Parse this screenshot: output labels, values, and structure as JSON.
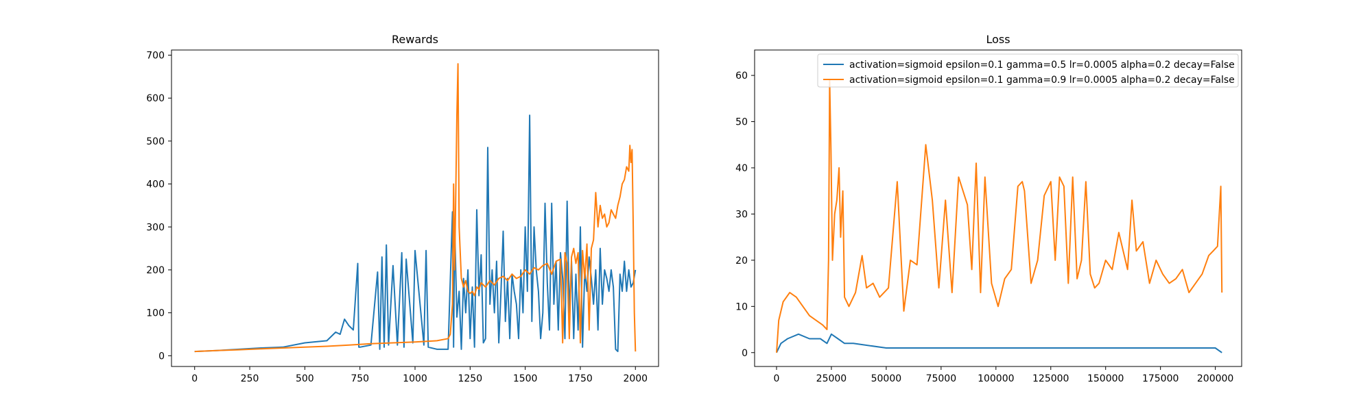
{
  "chart_data": [
    {
      "type": "line",
      "title": "Rewards",
      "xlabel": "",
      "ylabel": "",
      "xlim": [
        -105,
        2105
      ],
      "ylim": [
        -25,
        712
      ],
      "xticks": [
        0,
        250,
        500,
        750,
        1000,
        1250,
        1500,
        1750,
        2000
      ],
      "xtick_labels": [
        "0",
        "250",
        "500",
        "750",
        "1000",
        "1250",
        "1500",
        "1750",
        "2000"
      ],
      "yticks": [
        0,
        100,
        200,
        300,
        400,
        500,
        600,
        700
      ],
      "ytick_labels": [
        "0",
        "100",
        "200",
        "300",
        "400",
        "500",
        "600",
        "700"
      ],
      "grid": false,
      "legend": "none",
      "series": [
        {
          "color": "#1f77b4",
          "x": [
            0,
            100,
            200,
            300,
            400,
            500,
            600,
            640,
            660,
            680,
            700,
            720,
            740,
            745,
            750,
            800,
            830,
            840,
            850,
            860,
            870,
            880,
            900,
            920,
            940,
            950,
            960,
            990,
            1000,
            1040,
            1050,
            1060,
            1100,
            1150,
            1170,
            1175,
            1180,
            1190,
            1200,
            1210,
            1220,
            1230,
            1240,
            1250,
            1260,
            1270,
            1280,
            1290,
            1300,
            1310,
            1320,
            1330,
            1340,
            1350,
            1360,
            1370,
            1380,
            1390,
            1400,
            1410,
            1420,
            1430,
            1440,
            1450,
            1460,
            1470,
            1480,
            1490,
            1500,
            1510,
            1520,
            1530,
            1540,
            1550,
            1560,
            1570,
            1580,
            1590,
            1600,
            1610,
            1620,
            1630,
            1640,
            1650,
            1660,
            1670,
            1680,
            1690,
            1700,
            1710,
            1720,
            1730,
            1740,
            1750,
            1760,
            1770,
            1780,
            1790,
            1800,
            1810,
            1820,
            1830,
            1840,
            1850,
            1860,
            1870,
            1880,
            1890,
            1900,
            1910,
            1920,
            1930,
            1940,
            1950,
            1960,
            1970,
            1980,
            1990,
            2000
          ],
          "y": [
            10,
            12,
            15,
            18,
            20,
            30,
            35,
            55,
            50,
            85,
            70,
            60,
            215,
            20,
            20,
            25,
            195,
            15,
            230,
            20,
            258,
            25,
            210,
            25,
            240,
            20,
            225,
            30,
            245,
            25,
            245,
            20,
            15,
            15,
            335,
            20,
            300,
            90,
            150,
            15,
            180,
            100,
            200,
            40,
            160,
            20,
            340,
            140,
            235,
            30,
            40,
            485,
            120,
            200,
            100,
            220,
            30,
            150,
            290,
            80,
            180,
            40,
            190,
            150,
            120,
            40,
            200,
            100,
            300,
            150,
            560,
            80,
            300,
            200,
            150,
            40,
            100,
            355,
            170,
            60,
            355,
            120,
            220,
            60,
            240,
            180,
            40,
            360,
            100,
            220,
            40,
            190,
            60,
            300,
            20,
            200,
            150,
            230,
            180,
            120,
            200,
            60,
            250,
            120,
            200,
            180,
            150,
            200,
            160,
            15,
            10,
            190,
            150,
            220,
            150,
            200,
            160,
            170,
            200
          ]
        },
        {
          "color": "#ff7f0e",
          "x": [
            0,
            100,
            200,
            300,
            400,
            500,
            600,
            700,
            800,
            900,
            1000,
            1100,
            1150,
            1160,
            1170,
            1175,
            1180,
            1190,
            1195,
            1200,
            1210,
            1220,
            1230,
            1240,
            1250,
            1260,
            1270,
            1280,
            1290,
            1300,
            1320,
            1340,
            1350,
            1360,
            1380,
            1400,
            1420,
            1440,
            1460,
            1480,
            1500,
            1520,
            1540,
            1560,
            1580,
            1600,
            1620,
            1640,
            1660,
            1670,
            1680,
            1690,
            1700,
            1710,
            1720,
            1730,
            1740,
            1750,
            1760,
            1770,
            1780,
            1790,
            1800,
            1810,
            1820,
            1830,
            1840,
            1850,
            1860,
            1870,
            1880,
            1890,
            1900,
            1910,
            1920,
            1930,
            1940,
            1950,
            1960,
            1970,
            1975,
            1980,
            1985,
            1990,
            1995,
            2000
          ],
          "y": [
            10,
            12,
            14,
            16,
            18,
            20,
            22,
            25,
            28,
            30,
            32,
            35,
            40,
            50,
            120,
            400,
            200,
            560,
            680,
            300,
            180,
            160,
            175,
            150,
            145,
            150,
            140,
            160,
            155,
            170,
            160,
            175,
            170,
            165,
            180,
            185,
            175,
            190,
            180,
            185,
            200,
            190,
            205,
            200,
            210,
            215,
            190,
            220,
            225,
            30,
            240,
            215,
            40,
            230,
            250,
            215,
            240,
            30,
            245,
            180,
            260,
            60,
            250,
            270,
            380,
            300,
            350,
            320,
            330,
            300,
            310,
            340,
            330,
            320,
            350,
            370,
            400,
            410,
            440,
            430,
            490,
            450,
            480,
            300,
            100,
            10
          ]
        }
      ]
    },
    {
      "type": "line",
      "title": "Loss",
      "xlabel": "",
      "ylabel": "",
      "xlim": [
        -10000,
        212000
      ],
      "ylim": [
        -3,
        65.5
      ],
      "xticks": [
        0,
        25000,
        50000,
        75000,
        100000,
        125000,
        150000,
        175000,
        200000
      ],
      "xtick_labels": [
        "0",
        "25000",
        "50000",
        "75000",
        "100000",
        "125000",
        "150000",
        "175000",
        "200000"
      ],
      "yticks": [
        0,
        10,
        20,
        30,
        40,
        50,
        60
      ],
      "ytick_labels": [
        "0",
        "10",
        "20",
        "30",
        "40",
        "50",
        "60"
      ],
      "grid": false,
      "legend": "top-right",
      "series": [
        {
          "name": "activation=sigmoid epsilon=0.1 gamma=0.5 lr=0.0005 alpha=0.2 decay=False",
          "color": "#1f77b4",
          "x": [
            0,
            2000,
            5000,
            10000,
            15000,
            20000,
            23000,
            25000,
            28000,
            31000,
            35000,
            50000,
            75000,
            100000,
            125000,
            150000,
            175000,
            200000,
            203000
          ],
          "y": [
            0,
            2,
            3,
            4,
            3,
            3,
            2,
            4,
            3,
            2,
            2,
            1,
            1,
            1,
            1,
            1,
            1,
            1,
            0
          ]
        },
        {
          "name": "activation=sigmoid epsilon=0.1 gamma=0.9 lr=0.0005 alpha=0.2 decay=False",
          "color": "#ff7f0e",
          "x": [
            0,
            1000,
            3000,
            6000,
            9000,
            12000,
            15000,
            18000,
            21000,
            23000,
            23700,
            24200,
            24800,
            25500,
            26500,
            27500,
            28500,
            29200,
            30200,
            31000,
            32000,
            33000,
            36000,
            39000,
            41000,
            44000,
            47000,
            51000,
            55000,
            58000,
            61000,
            64000,
            68000,
            71000,
            74000,
            77000,
            80000,
            83000,
            87000,
            89000,
            91000,
            93000,
            95000,
            98000,
            101000,
            104000,
            107000,
            110000,
            112000,
            113000,
            116000,
            119000,
            122000,
            125000,
            127000,
            129000,
            131000,
            133000,
            135000,
            137000,
            139000,
            141000,
            143000,
            145000,
            147000,
            150000,
            153000,
            156000,
            158000,
            160000,
            162000,
            164000,
            167000,
            170000,
            173000,
            176000,
            179000,
            182000,
            185000,
            188000,
            191000,
            194000,
            197000,
            199000,
            201000,
            202500,
            203000
          ],
          "y": [
            0,
            7,
            11,
            13,
            12,
            10,
            8,
            7,
            6,
            5,
            20,
            59,
            44,
            20,
            30,
            33,
            40,
            25,
            35,
            12,
            11,
            10,
            13,
            21,
            14,
            15,
            12,
            14,
            37,
            9,
            20,
            19,
            45,
            33,
            14,
            33,
            13,
            38,
            32,
            18,
            41,
            13,
            38,
            15,
            10,
            16,
            18,
            36,
            37,
            35,
            15,
            20,
            34,
            37,
            20,
            38,
            36,
            15,
            38,
            16,
            20,
            37,
            17,
            14,
            15,
            20,
            18,
            26,
            22,
            18,
            33,
            22,
            24,
            15,
            20,
            17,
            15,
            16,
            18,
            13,
            15,
            17,
            21,
            22,
            23,
            36,
            13
          ]
        }
      ]
    }
  ]
}
